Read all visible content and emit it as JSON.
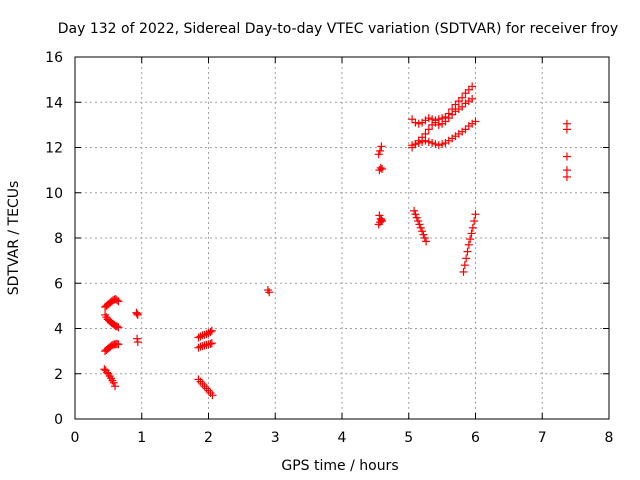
{
  "chart_data": {
    "type": "scatter",
    "title": "Day 132 of 2022, Sidereal Day-to-day VTEC variation (SDTVAR) for receiver froy",
    "xlabel": "GPS time / hours",
    "ylabel": "SDTVAR / TECUs",
    "xlim": [
      0,
      8
    ],
    "ylim": [
      0,
      16
    ],
    "x_ticks": [
      0,
      1,
      2,
      3,
      4,
      5,
      6,
      7,
      8
    ],
    "y_ticks": [
      0,
      2,
      4,
      6,
      8,
      10,
      12,
      14,
      16
    ],
    "grid": true,
    "marker": "plus",
    "color": "#ff0000",
    "series": [
      {
        "x": [
          0.45,
          0.47,
          0.49,
          0.51,
          0.53,
          0.55,
          0.57,
          0.59,
          0.61,
          0.63,
          0.65,
          0.45,
          0.47,
          0.49,
          0.51,
          0.53,
          0.55,
          0.57,
          0.59,
          0.61,
          0.63,
          0.65,
          0.45,
          0.47,
          0.49,
          0.51,
          0.53,
          0.55,
          0.57,
          0.59,
          0.61,
          0.63,
          0.65,
          0.44,
          0.46,
          0.48,
          0.5,
          0.52,
          0.54,
          0.56,
          0.58,
          0.6
        ],
        "y": [
          4.95,
          5.0,
          5.05,
          5.1,
          5.15,
          5.2,
          5.25,
          5.28,
          5.3,
          5.25,
          5.2,
          4.6,
          4.5,
          4.4,
          4.35,
          4.3,
          4.25,
          4.2,
          4.15,
          4.1,
          4.1,
          4.05,
          3.0,
          3.05,
          3.1,
          3.15,
          3.2,
          3.25,
          3.28,
          3.3,
          3.3,
          3.32,
          3.3,
          2.2,
          2.15,
          2.05,
          2.0,
          1.9,
          1.8,
          1.7,
          1.6,
          1.45
        ]
      },
      {
        "x": [
          0.92,
          0.93,
          0.94,
          0.93,
          0.94
        ],
        "y": [
          4.7,
          4.65,
          4.6,
          3.55,
          3.4
        ]
      },
      {
        "x": [
          1.85,
          1.88,
          1.91,
          1.94,
          1.97,
          2.0,
          2.03,
          2.05,
          1.85,
          1.88,
          1.91,
          1.94,
          1.97,
          2.0,
          2.03,
          2.05,
          1.85,
          1.88,
          1.91,
          1.94,
          1.97,
          2.0,
          2.03,
          2.06
        ],
        "y": [
          3.6,
          3.65,
          3.7,
          3.72,
          3.75,
          3.8,
          3.85,
          3.9,
          3.15,
          3.2,
          3.22,
          3.25,
          3.28,
          3.3,
          3.32,
          3.35,
          1.75,
          1.65,
          1.55,
          1.45,
          1.35,
          1.25,
          1.15,
          1.05
        ]
      },
      {
        "x": [
          2.89,
          2.91
        ],
        "y": [
          5.7,
          5.6
        ]
      },
      {
        "x": [
          4.55,
          4.57,
          4.59,
          4.56,
          4.58,
          4.6,
          4.56,
          4.58,
          4.6,
          4.55,
          4.57,
          4.59
        ],
        "y": [
          11.7,
          11.85,
          12.05,
          11.0,
          11.1,
          11.05,
          9.0,
          8.85,
          8.75,
          8.6,
          8.7,
          8.8
        ]
      },
      {
        "x": [
          5.05,
          5.1,
          5.15,
          5.2,
          5.25,
          5.3,
          5.35,
          5.4,
          5.45,
          5.5,
          5.55,
          5.6,
          5.65,
          5.7,
          5.75,
          5.8,
          5.85,
          5.9,
          5.95,
          5.05,
          5.1,
          5.15,
          5.2,
          5.25,
          5.3,
          5.35,
          5.4,
          5.45,
          5.5,
          5.55,
          5.6,
          5.65,
          5.7,
          5.75,
          5.8,
          5.85,
          5.9,
          5.95,
          5.05,
          5.1,
          5.15,
          5.2,
          5.25,
          5.3,
          5.35,
          5.4,
          5.45,
          5.5,
          5.55,
          5.6,
          5.65,
          5.7,
          5.75,
          5.8,
          5.85,
          5.9,
          5.95,
          6.0
        ],
        "y": [
          13.25,
          13.1,
          13.05,
          13.1,
          13.2,
          13.3,
          13.25,
          13.2,
          13.25,
          13.3,
          13.35,
          13.5,
          13.7,
          13.9,
          14.05,
          14.2,
          14.4,
          14.55,
          14.7,
          12.0,
          12.15,
          12.3,
          12.45,
          12.6,
          12.8,
          13.0,
          13.1,
          13.0,
          13.05,
          13.15,
          13.3,
          13.45,
          13.6,
          13.7,
          13.8,
          13.95,
          14.05,
          14.15,
          12.1,
          12.15,
          12.2,
          12.25,
          12.3,
          12.25,
          12.2,
          12.15,
          12.1,
          12.15,
          12.2,
          12.3,
          12.4,
          12.5,
          12.6,
          12.7,
          12.8,
          12.95,
          13.05,
          13.15
        ]
      },
      {
        "x": [
          5.08,
          5.1,
          5.12,
          5.14,
          5.16,
          5.18,
          5.2,
          5.22,
          5.24,
          5.26
        ],
        "y": [
          9.2,
          9.05,
          8.9,
          8.75,
          8.6,
          8.45,
          8.3,
          8.15,
          8.0,
          7.85
        ]
      },
      {
        "x": [
          5.82,
          5.84,
          5.86,
          5.88,
          5.9,
          5.92,
          5.94,
          5.96,
          5.98,
          6.0
        ],
        "y": [
          6.5,
          6.8,
          7.1,
          7.4,
          7.7,
          7.95,
          8.2,
          8.45,
          8.75,
          9.05
        ]
      },
      {
        "x": [
          7.37,
          7.37,
          7.37,
          7.37,
          7.37
        ],
        "y": [
          13.05,
          12.8,
          11.6,
          11.0,
          10.7
        ]
      }
    ]
  }
}
